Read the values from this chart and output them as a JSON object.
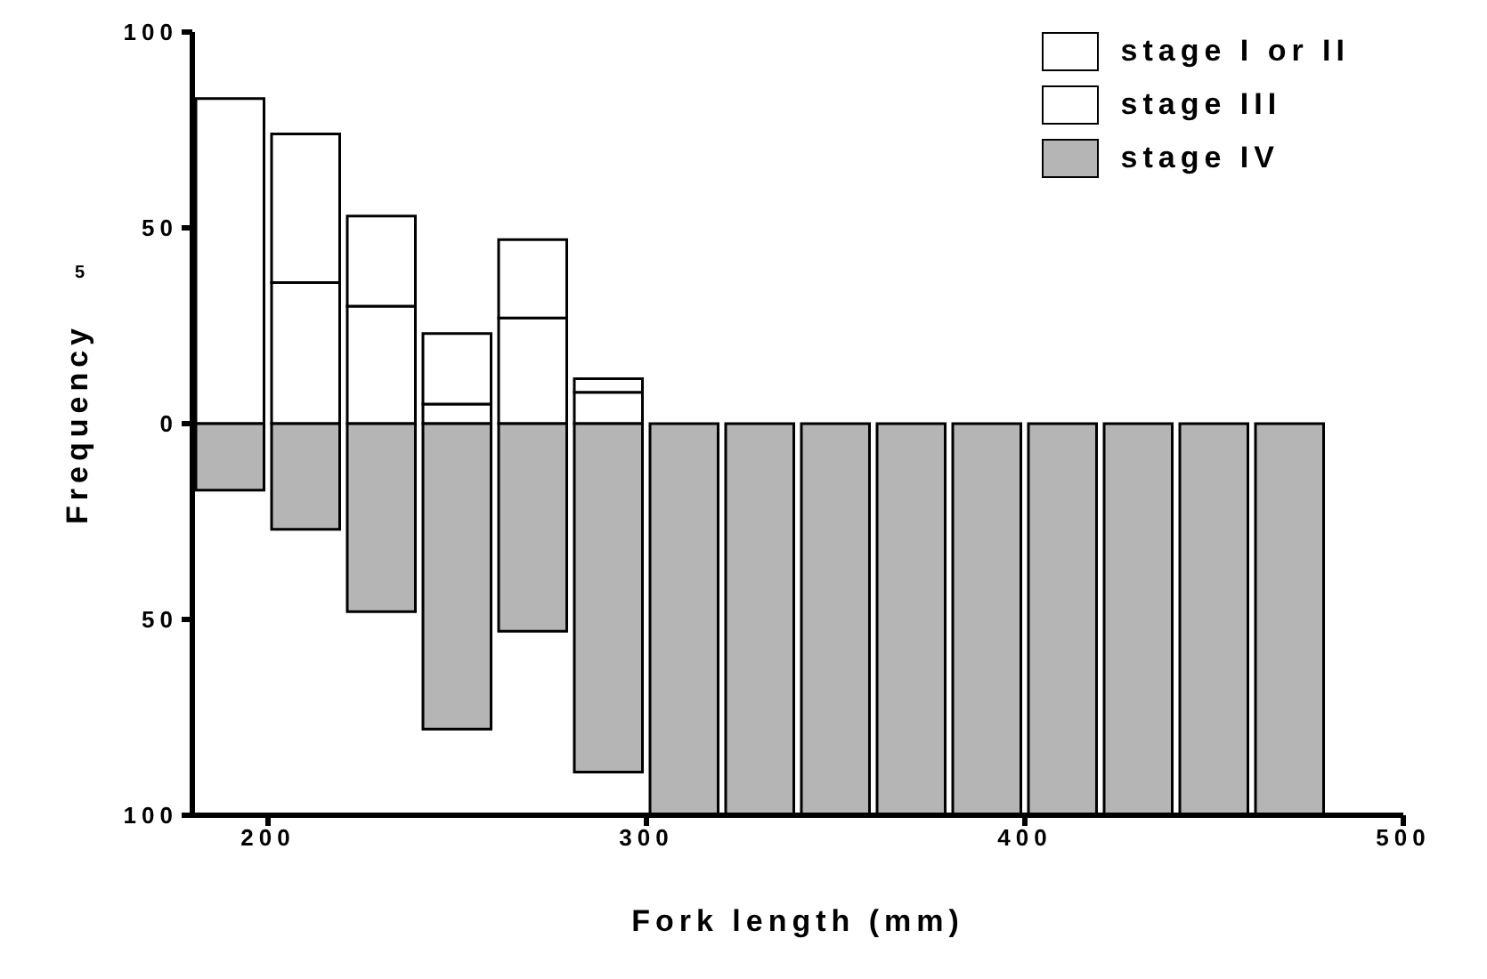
{
  "chart_data": {
    "type": "bar",
    "xlabel": "Fork length (mm)",
    "ylabel": "Frequency",
    "annotations": [
      "5"
    ],
    "x": [
      190,
      210,
      230,
      250,
      270,
      290,
      310,
      330,
      350,
      370,
      390,
      410,
      430,
      450,
      470
    ],
    "stacked": true,
    "series": [
      {
        "name": "stage I or II",
        "color": "#ffffff",
        "values": [
          83,
          36,
          30,
          5,
          27,
          8,
          0,
          0,
          0,
          0,
          0,
          0,
          0,
          0,
          0
        ]
      },
      {
        "name": "stage III",
        "color": "#ffffff",
        "values": [
          0,
          38,
          23,
          18,
          20,
          3.5,
          0,
          0,
          0,
          0,
          0,
          0,
          0,
          0,
          0
        ]
      },
      {
        "name": "stage IV",
        "color": "#b5b5b5",
        "values": [
          -17,
          -27,
          -48,
          -78,
          -53,
          -89,
          -100,
          -100,
          -100,
          -100,
          -100,
          -100,
          -100,
          -100,
          -100
        ]
      }
    ],
    "xlim": [
      180,
      500
    ],
    "xticks": [
      200,
      300,
      400,
      500
    ],
    "ylim": [
      -100,
      100
    ],
    "yticks": [
      {
        "value": -100,
        "label": "100"
      },
      {
        "value": -50,
        "label": "50"
      },
      0,
      50,
      100
    ],
    "grid": false,
    "legend": "top right"
  }
}
